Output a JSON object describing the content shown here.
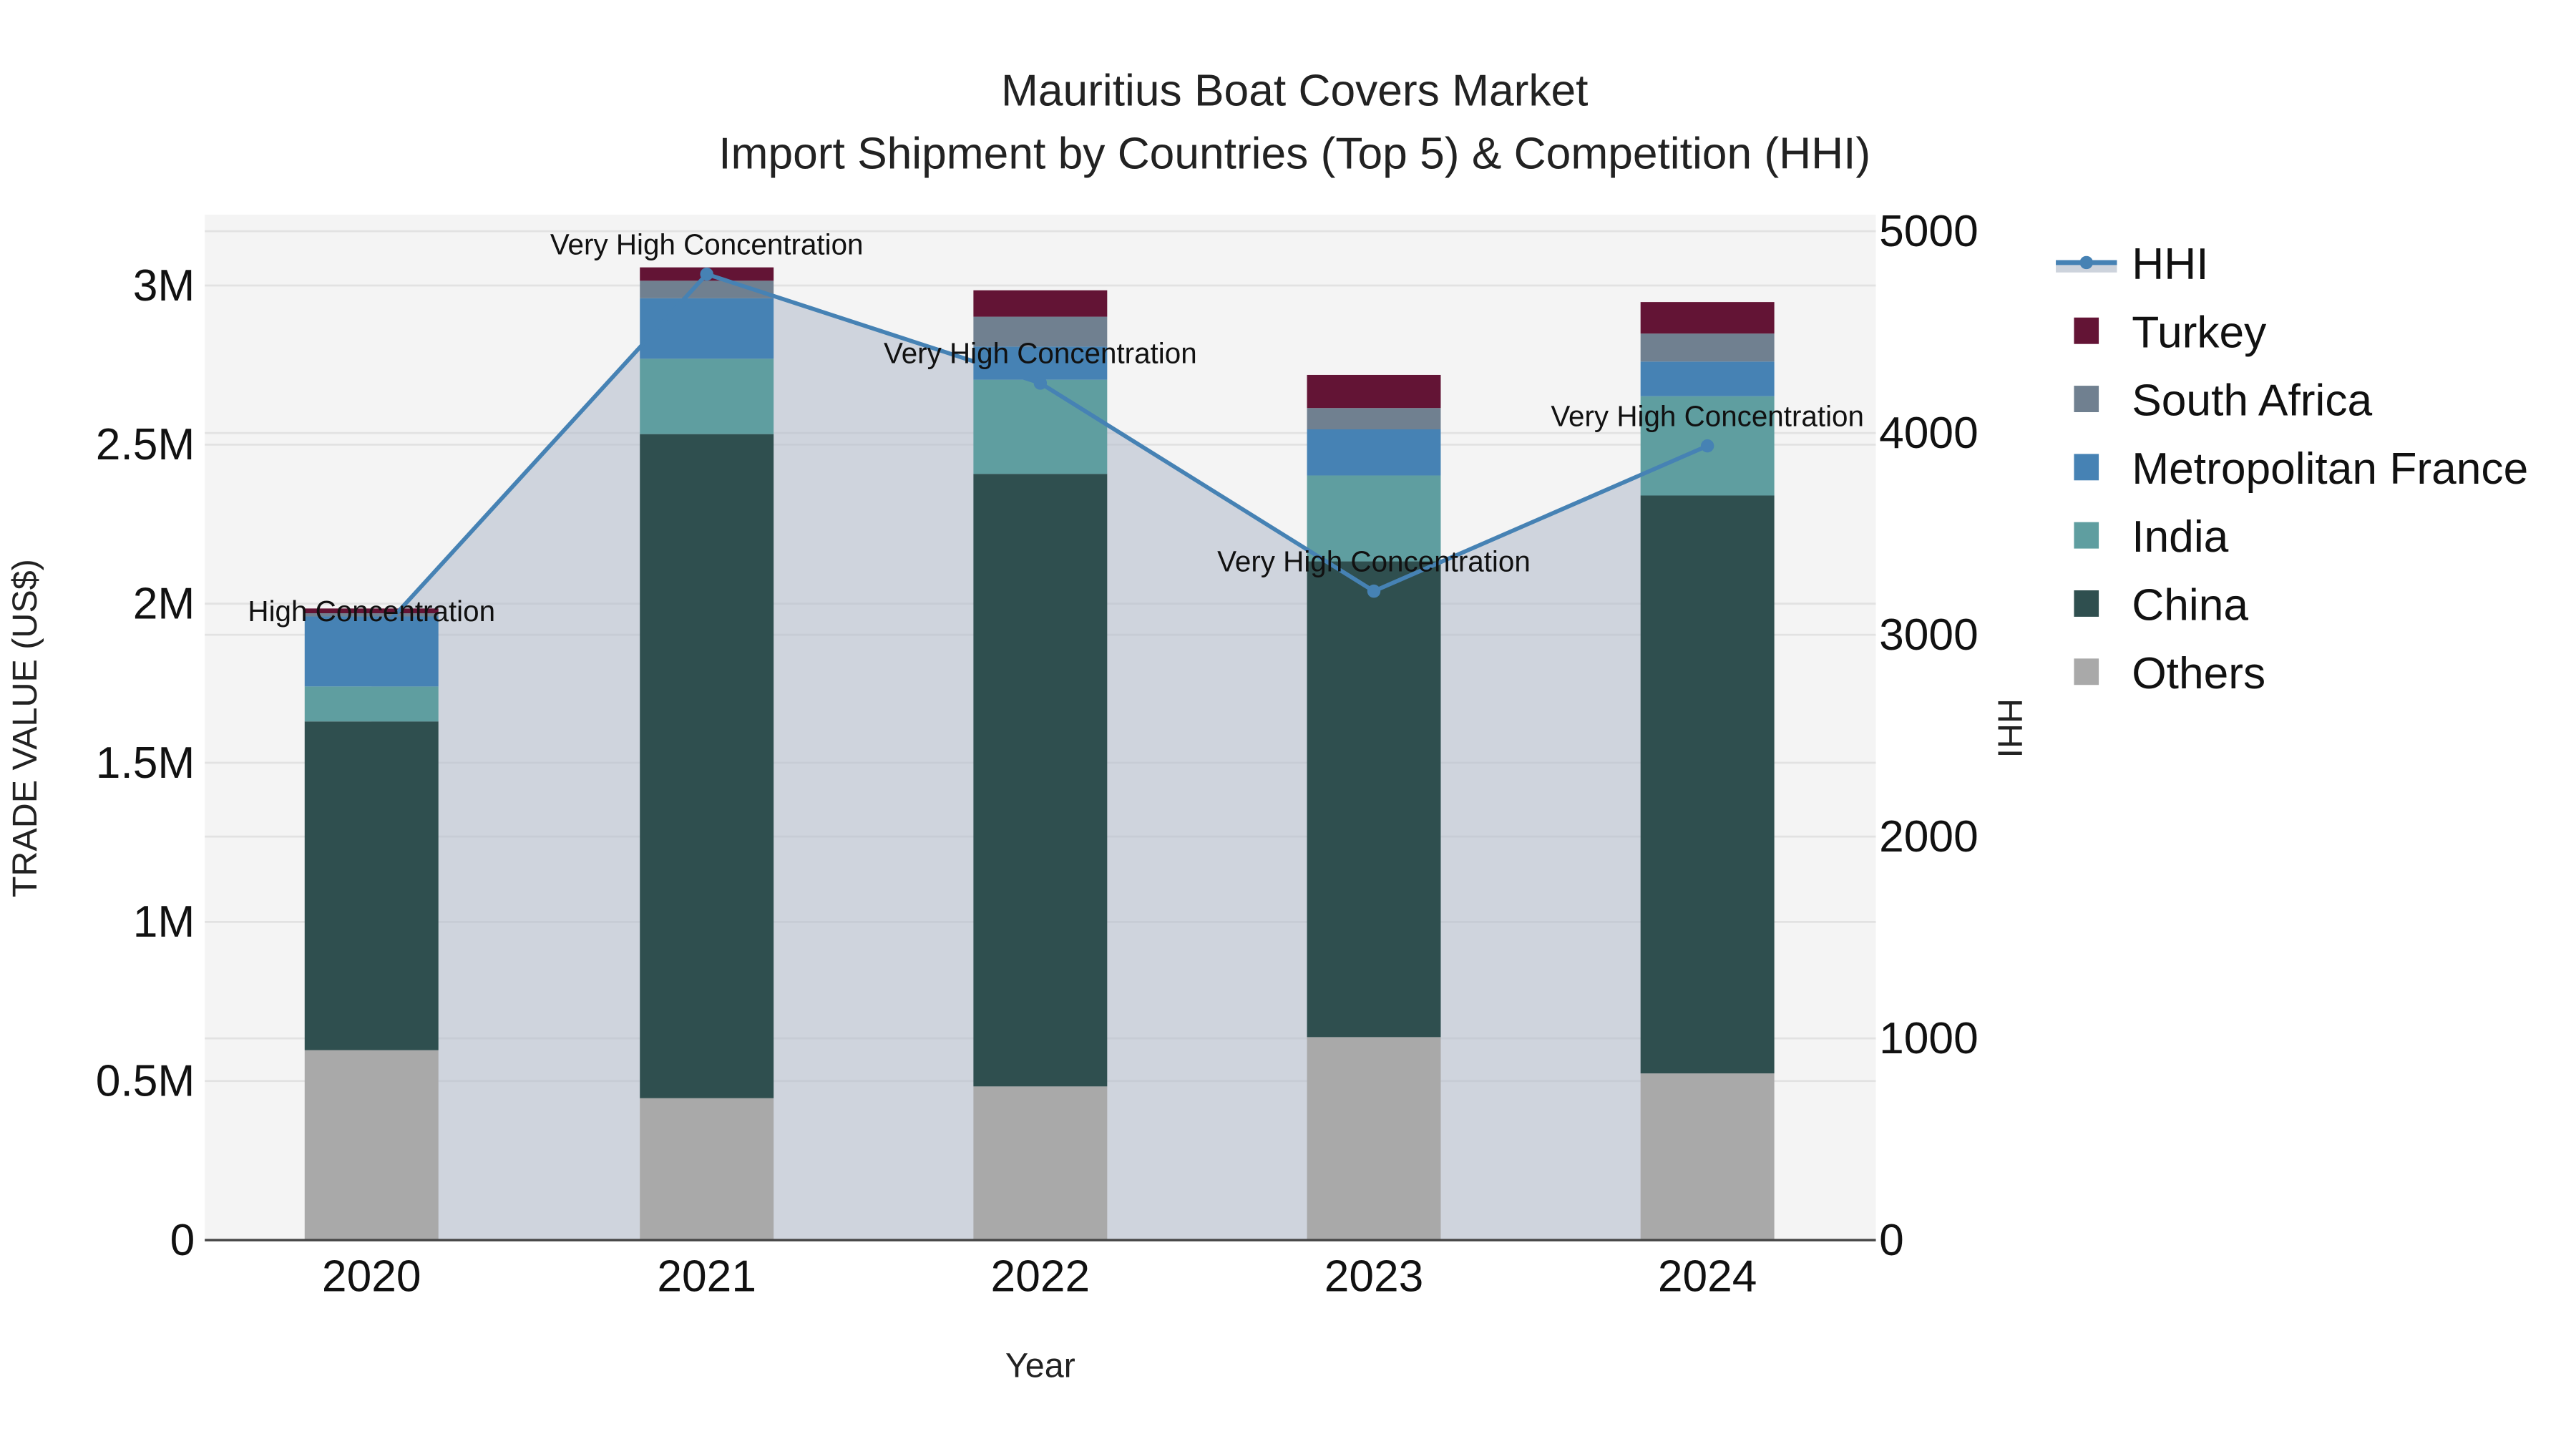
{
  "title": {
    "line1": "Mauritius Boat Covers Market",
    "line2": "Import Shipment by Countries (Top 5) & Competition (HHI)"
  },
  "axes": {
    "x_title": "Year",
    "y_left_title": "TRADE VALUE (US$)",
    "y_right_title": "HHI",
    "y_left_ticks": [
      {
        "value": 0,
        "label": "0"
      },
      {
        "value": 500000,
        "label": "0.5M"
      },
      {
        "value": 1000000,
        "label": "1M"
      },
      {
        "value": 1500000,
        "label": "1.5M"
      },
      {
        "value": 2000000,
        "label": "2M"
      },
      {
        "value": 2500000,
        "label": "2.5M"
      },
      {
        "value": 3000000,
        "label": "3M"
      }
    ],
    "y_right_ticks": [
      {
        "value": 0,
        "label": "0"
      },
      {
        "value": 1000,
        "label": "1000"
      },
      {
        "value": 2000,
        "label": "2000"
      },
      {
        "value": 3000,
        "label": "3000"
      },
      {
        "value": 4000,
        "label": "4000"
      },
      {
        "value": 5000,
        "label": "5000"
      }
    ]
  },
  "legend": [
    {
      "name": "HHI",
      "type": "line",
      "color": "#4682B4"
    },
    {
      "name": "Turkey",
      "type": "bar",
      "color": "#631435"
    },
    {
      "name": "South Africa",
      "type": "bar",
      "color": "#708090"
    },
    {
      "name": "Metropolitan France",
      "type": "bar",
      "color": "#4682B4"
    },
    {
      "name": "India",
      "type": "bar",
      "color": "#5F9EA0"
    },
    {
      "name": "China",
      "type": "bar",
      "color": "#2F4F4F"
    },
    {
      "name": "Others",
      "type": "bar",
      "color": "#A9A9A9"
    }
  ],
  "colors": {
    "plot_bg": "#F4F4F4",
    "grid": "#E2E2E2",
    "hhi_line": "#4682B4",
    "hhi_fill": "rgba(176,186,202,0.55)"
  },
  "chart_data": {
    "type": "bar",
    "stacked": true,
    "title": "Mauritius Boat Covers Market — Import Shipment by Countries (Top 5) & Competition (HHI)",
    "xlabel": "Year",
    "ylabel": "TRADE VALUE (US$)",
    "y2label": "HHI",
    "ylim": [
      0,
      3200000
    ],
    "y2lim": [
      0,
      5000
    ],
    "categories": [
      "2020",
      "2021",
      "2022",
      "2023",
      "2024"
    ],
    "series": [
      {
        "name": "Others",
        "color": "#A9A9A9",
        "values": [
          597000,
          446000,
          483000,
          638000,
          524000
        ]
      },
      {
        "name": "China",
        "color": "#2F4F4F",
        "values": [
          1033000,
          2087000,
          1925000,
          1495000,
          1816000
        ]
      },
      {
        "name": "India",
        "color": "#5F9EA0",
        "values": [
          110000,
          237000,
          296000,
          270000,
          312000
        ]
      },
      {
        "name": "Metropolitan France",
        "color": "#4682B4",
        "values": [
          220000,
          190000,
          104000,
          145000,
          109000
        ]
      },
      {
        "name": "South Africa",
        "color": "#708090",
        "values": [
          10000,
          55000,
          94000,
          67000,
          88000
        ]
      },
      {
        "name": "Turkey",
        "color": "#631435",
        "values": [
          15000,
          42000,
          83000,
          104000,
          99000
        ]
      }
    ],
    "hhi": {
      "name": "HHI",
      "axis": "right",
      "values": [
        2970,
        4787,
        4247,
        3216,
        3936
      ],
      "annotations": [
        "High Concentration",
        "Very High Concentration",
        "Very High Concentration",
        "Very High Concentration",
        "Very High Concentration"
      ]
    },
    "grid": true,
    "legend_position": "right"
  }
}
